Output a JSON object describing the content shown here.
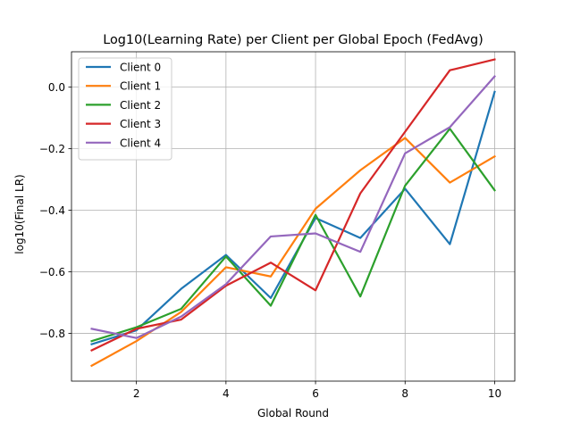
{
  "chart_data": {
    "type": "line",
    "title": "Log10(Learning Rate) per Client per Global Epoch (FedAvg)",
    "xlabel": "Global Round",
    "ylabel": "log10(Final LR)",
    "xlim": [
      0.55,
      10.45
    ],
    "ylim": [
      -0.955,
      0.115
    ],
    "x": [
      1,
      2,
      3,
      4,
      5,
      6,
      7,
      8,
      9,
      10
    ],
    "xticks": [
      2,
      4,
      6,
      8,
      10
    ],
    "xtick_labels": [
      "2",
      "4",
      "6",
      "8",
      "10"
    ],
    "yticks": [
      -0.8,
      -0.6,
      -0.4,
      -0.2,
      0.0
    ],
    "ytick_labels": [
      "−0.8",
      "−0.6",
      "−0.4",
      "−0.2",
      "0.0"
    ],
    "grid": true,
    "legend_position": "top-left",
    "series": [
      {
        "name": "Client 0",
        "color": "#1f77b4",
        "values": [
          -0.835,
          -0.79,
          -0.655,
          -0.545,
          -0.685,
          -0.425,
          -0.49,
          -0.33,
          -0.51,
          -0.015
        ]
      },
      {
        "name": "Client 1",
        "color": "#ff7f0e",
        "values": [
          -0.905,
          -0.825,
          -0.73,
          -0.585,
          -0.615,
          -0.395,
          -0.27,
          -0.165,
          -0.31,
          -0.225
        ]
      },
      {
        "name": "Client 2",
        "color": "#2ca02c",
        "values": [
          -0.825,
          -0.78,
          -0.72,
          -0.55,
          -0.71,
          -0.415,
          -0.68,
          -0.32,
          -0.135,
          -0.335
        ]
      },
      {
        "name": "Client 3",
        "color": "#d62728",
        "values": [
          -0.855,
          -0.785,
          -0.755,
          -0.645,
          -0.57,
          -0.66,
          -0.345,
          -0.145,
          0.055,
          0.09
        ]
      },
      {
        "name": "Client 4",
        "color": "#9467bd",
        "values": [
          -0.785,
          -0.815,
          -0.745,
          -0.64,
          -0.485,
          -0.475,
          -0.535,
          -0.215,
          -0.13,
          0.035
        ]
      }
    ]
  }
}
